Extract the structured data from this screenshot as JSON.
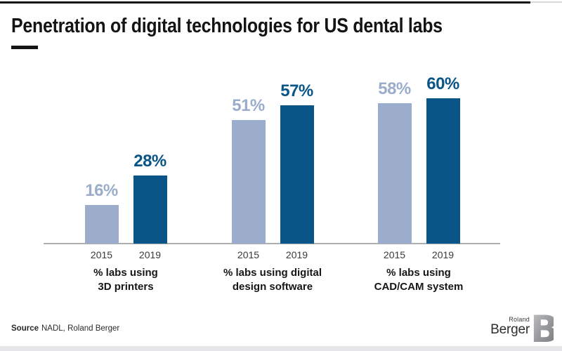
{
  "page": {
    "title": "Penetration of digital technologies for US dental labs",
    "source_label": "Source",
    "source_text": "NADL, Roland Berger",
    "logo": {
      "top": "Roland",
      "bottom": "Berger",
      "b_letter": "B"
    }
  },
  "colors": {
    "bar_2015": "#9BADCA",
    "bar_2019": "#0A5587",
    "label_2015": "#9BADCA",
    "label_2019": "#0A5587",
    "axis": "#AEAEAE",
    "title": "#141414"
  },
  "chart_data": {
    "type": "bar",
    "title": "Penetration of digital technologies for US dental labs",
    "series_years": [
      "2015",
      "2019"
    ],
    "unit": "%",
    "ylim": [
      0,
      65
    ],
    "grid": false,
    "legend": "none (years labeled under each bar)",
    "value_labels": "above each bar, colored to match bar",
    "groups": [
      {
        "label_lines": [
          "% labs using",
          "3D printers"
        ],
        "values": [
          16,
          28
        ]
      },
      {
        "label_lines": [
          "% labs using digital",
          "design software"
        ],
        "values": [
          51,
          57
        ]
      },
      {
        "label_lines": [
          "% labs using",
          "CAD/CAM system"
        ],
        "values": [
          58,
          60
        ]
      }
    ]
  }
}
